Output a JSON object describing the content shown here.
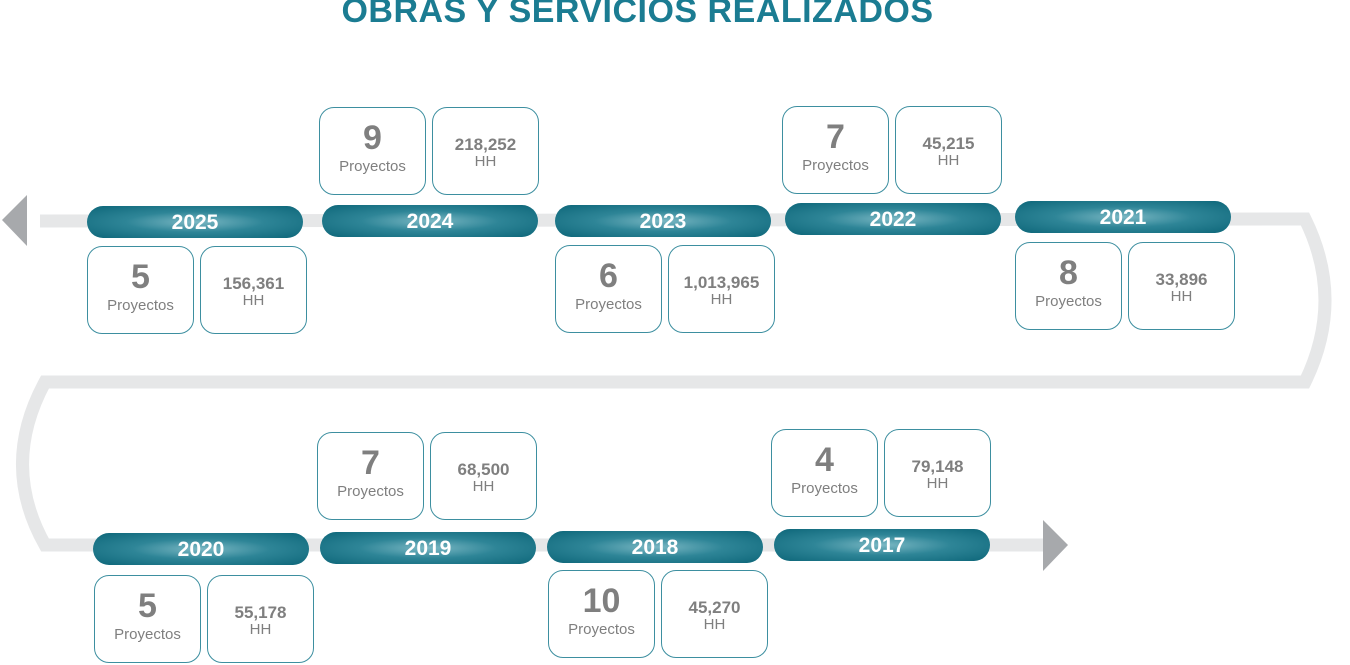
{
  "title": "OBRAS Y SERVICIOS REALIZADOS",
  "colors": {
    "accent": "#1b7c92",
    "track": "#e6e7e8",
    "arrow": "#a7a9ac",
    "text": "#7f7f7f"
  },
  "years": [
    {
      "year": "2025",
      "projects": "5",
      "projects_label": "Proyectos",
      "hh": "156,361",
      "hh_label": "HH"
    },
    {
      "year": "2024",
      "projects": "9",
      "projects_label": "Proyectos",
      "hh": "218,252",
      "hh_label": "HH"
    },
    {
      "year": "2023",
      "projects": "6",
      "projects_label": "Proyectos",
      "hh": "1,013,965",
      "hh_label": "HH"
    },
    {
      "year": "2022",
      "projects": "7",
      "projects_label": "Proyectos",
      "hh": "45,215",
      "hh_label": "HH"
    },
    {
      "year": "2021",
      "projects": "8",
      "projects_label": "Proyectos",
      "hh": "33,896",
      "hh_label": "HH"
    },
    {
      "year": "2020",
      "projects": "5",
      "projects_label": "Proyectos",
      "hh": "55,178",
      "hh_label": "HH"
    },
    {
      "year": "2019",
      "projects": "7",
      "projects_label": "Proyectos",
      "hh": "68,500",
      "hh_label": "HH"
    },
    {
      "year": "2018",
      "projects": "10",
      "projects_label": "Proyectos",
      "hh": "45,270",
      "hh_label": "HH"
    },
    {
      "year": "2017",
      "projects": "4",
      "projects_label": "Proyectos",
      "hh": "79,148",
      "hh_label": "HH"
    }
  ]
}
